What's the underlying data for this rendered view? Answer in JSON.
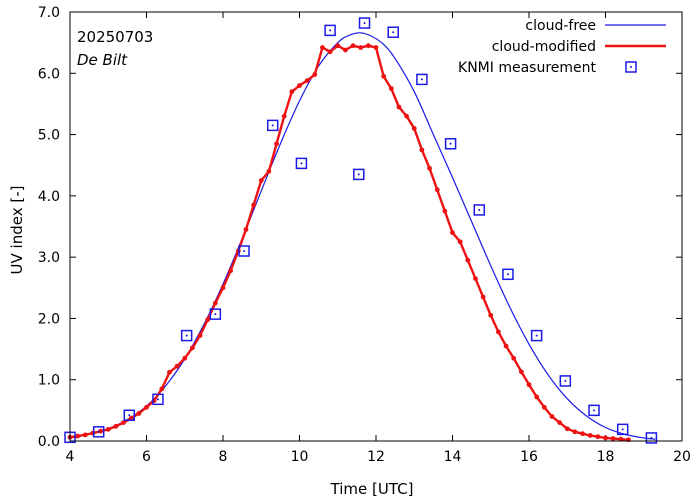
{
  "chart_data": {
    "type": "line",
    "xlabel": "Time  [UTC]",
    "ylabel": "UV index  [-]",
    "xlim": [
      4,
      20
    ],
    "ylim": [
      0,
      7
    ],
    "x_ticks": [
      4,
      6,
      8,
      10,
      12,
      14,
      16,
      18,
      20
    ],
    "y_ticks": [
      0,
      1,
      2,
      3,
      4,
      5,
      6,
      7
    ],
    "x_tick_labels": [
      "4",
      "6",
      "8",
      "10",
      "12",
      "14",
      "16",
      "18",
      "20"
    ],
    "y_tick_labels": [
      "0.0",
      "1.0",
      "2.0",
      "3.0",
      "4.0",
      "5.0",
      "6.0",
      "7.0"
    ],
    "annotations": {
      "date": "20250703",
      "location": "De Bilt"
    },
    "legend_position": "top-right",
    "series": [
      {
        "name": "cloud-free",
        "style": "line",
        "color": "#1a1ae6",
        "x": [
          4.0,
          4.5,
          5.0,
          5.5,
          6.0,
          6.5,
          7.0,
          7.5,
          8.0,
          8.5,
          9.0,
          9.5,
          10.0,
          10.5,
          11.0,
          11.3,
          11.6,
          11.9,
          12.2,
          12.5,
          13.0,
          13.5,
          14.0,
          14.5,
          15.0,
          15.5,
          16.0,
          16.5,
          17.0,
          17.5,
          18.0,
          18.5,
          19.0,
          19.3
        ],
        "values": [
          0.05,
          0.11,
          0.2,
          0.35,
          0.57,
          0.9,
          1.34,
          1.9,
          2.56,
          3.3,
          4.08,
          4.85,
          5.55,
          6.12,
          6.5,
          6.62,
          6.66,
          6.6,
          6.47,
          6.24,
          5.7,
          5.0,
          4.3,
          3.58,
          2.86,
          2.18,
          1.58,
          1.08,
          0.69,
          0.41,
          0.22,
          0.11,
          0.05,
          0.03
        ]
      },
      {
        "name": "cloud-modified",
        "style": "line-markers",
        "color": "#ee1111",
        "x": [
          4.0,
          4.2,
          4.4,
          4.6,
          4.8,
          5.0,
          5.2,
          5.4,
          5.6,
          5.8,
          6.0,
          6.2,
          6.4,
          6.6,
          6.8,
          7.0,
          7.2,
          7.4,
          7.6,
          7.8,
          8.0,
          8.2,
          8.4,
          8.6,
          8.8,
          9.0,
          9.2,
          9.4,
          9.6,
          9.8,
          10.0,
          10.2,
          10.4,
          10.6,
          10.8,
          11.0,
          11.2,
          11.4,
          11.6,
          11.8,
          12.0,
          12.2,
          12.4,
          12.6,
          12.8,
          13.0,
          13.2,
          13.4,
          13.6,
          13.8,
          14.0,
          14.2,
          14.4,
          14.6,
          14.8,
          15.0,
          15.2,
          15.4,
          15.6,
          15.8,
          16.0,
          16.2,
          16.4,
          16.6,
          16.8,
          17.0,
          17.2,
          17.4,
          17.6,
          17.8,
          18.0,
          18.2,
          18.4,
          18.6
        ],
        "values": [
          0.06,
          0.08,
          0.1,
          0.13,
          0.16,
          0.19,
          0.24,
          0.3,
          0.37,
          0.45,
          0.55,
          0.66,
          0.85,
          1.12,
          1.22,
          1.35,
          1.52,
          1.72,
          1.98,
          2.25,
          2.5,
          2.78,
          3.1,
          3.45,
          3.85,
          4.25,
          4.4,
          4.85,
          5.3,
          5.7,
          5.8,
          5.88,
          5.98,
          6.42,
          6.35,
          6.45,
          6.38,
          6.45,
          6.42,
          6.45,
          6.42,
          5.95,
          5.75,
          5.45,
          5.3,
          5.1,
          4.75,
          4.45,
          4.1,
          3.75,
          3.4,
          3.25,
          2.95,
          2.65,
          2.35,
          2.05,
          1.78,
          1.55,
          1.35,
          1.13,
          0.92,
          0.72,
          0.55,
          0.4,
          0.3,
          0.2,
          0.15,
          0.12,
          0.09,
          0.07,
          0.05,
          0.04,
          0.03,
          0.02
        ]
      },
      {
        "name": "KNMI measurement",
        "style": "markers",
        "color": "#1a1ae6",
        "x": [
          4.0,
          4.75,
          5.55,
          6.3,
          7.05,
          7.8,
          8.55,
          9.3,
          10.05,
          10.8,
          11.55,
          11.7,
          12.45,
          13.2,
          13.95,
          14.7,
          15.45,
          16.2,
          16.95,
          17.7,
          18.45,
          19.2
        ],
        "values": [
          0.06,
          0.15,
          0.42,
          0.68,
          1.72,
          2.07,
          3.1,
          5.15,
          4.53,
          6.7,
          4.35,
          6.82,
          6.67,
          5.9,
          4.85,
          3.77,
          2.72,
          1.72,
          0.98,
          0.5,
          0.19,
          0.05
        ]
      }
    ]
  }
}
